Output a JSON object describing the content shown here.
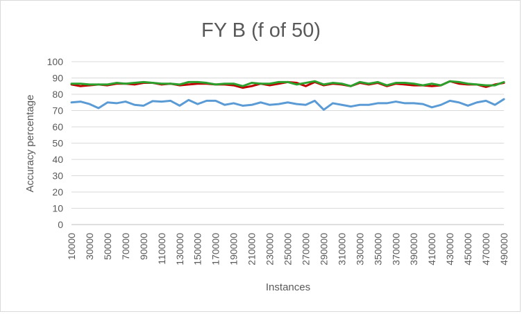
{
  "chart_data": {
    "type": "line",
    "title": "FY B (f of 50)",
    "xlabel": "Instances",
    "ylabel": "Accuracy percentage",
    "ylim": [
      0,
      100
    ],
    "y_ticks": [
      0,
      10,
      20,
      30,
      40,
      50,
      60,
      70,
      80,
      90,
      100
    ],
    "x_tick_labels": [
      "10000",
      "30000",
      "50000",
      "70000",
      "90000",
      "110000",
      "130000",
      "150000",
      "170000",
      "190000",
      "210000",
      "230000",
      "250000",
      "270000",
      "290000",
      "310000",
      "330000",
      "350000",
      "370000",
      "390000",
      "410000",
      "430000",
      "450000",
      "470000",
      "490000"
    ],
    "x": [
      10000,
      20000,
      30000,
      40000,
      50000,
      60000,
      70000,
      80000,
      90000,
      100000,
      110000,
      120000,
      130000,
      140000,
      150000,
      160000,
      170000,
      180000,
      190000,
      200000,
      210000,
      220000,
      230000,
      240000,
      250000,
      260000,
      270000,
      280000,
      290000,
      300000,
      310000,
      320000,
      330000,
      340000,
      350000,
      360000,
      370000,
      380000,
      390000,
      400000,
      410000,
      420000,
      430000,
      440000,
      450000,
      460000,
      470000,
      480000,
      490000
    ],
    "grid": true,
    "legend": "none",
    "series": [
      {
        "name": "blue",
        "color": "#5b9bd5",
        "values": [
          75,
          75.5,
          74,
          71.5,
          75,
          74.5,
          75.5,
          73.5,
          73,
          75.8,
          75.5,
          76,
          73,
          76.5,
          74,
          76,
          76,
          73.5,
          74.5,
          73,
          73.5,
          75,
          73.5,
          74,
          75,
          74,
          73.5,
          76,
          70.5,
          74.5,
          73.5,
          72.5,
          73.5,
          73.5,
          74.5,
          74.5,
          75.5,
          74.5,
          74.5,
          74,
          72,
          73.5,
          76,
          75,
          73,
          75,
          76,
          73.5,
          77
        ]
      },
      {
        "name": "red",
        "color": "#c00000",
        "values": [
          86,
          85,
          85.5,
          86,
          85.5,
          86.5,
          86.5,
          86,
          87,
          87,
          86,
          86.5,
          85.5,
          86,
          86.5,
          86.5,
          86,
          86,
          85.5,
          84,
          85,
          86.5,
          85.5,
          86.5,
          87.5,
          87,
          85,
          87.5,
          85.5,
          86.5,
          86,
          85,
          87,
          86,
          87,
          85,
          86.5,
          86,
          85.5,
          85.5,
          85,
          85.5,
          88,
          86.5,
          86,
          86,
          84.5,
          86,
          87
        ]
      },
      {
        "name": "green",
        "color": "#2ca02c",
        "values": [
          86.5,
          86.5,
          86,
          86,
          86,
          87,
          86.5,
          87,
          87.5,
          87,
          86.5,
          86.5,
          86,
          87.5,
          87.5,
          87,
          86,
          86.5,
          86.5,
          85,
          87,
          86.5,
          86.5,
          87.5,
          87.5,
          86,
          87,
          88,
          86,
          87,
          86.5,
          85,
          87.5,
          86.5,
          87.5,
          85.5,
          87,
          87,
          86.5,
          85.5,
          86.5,
          85.5,
          88,
          87.5,
          86.5,
          86,
          85.5,
          85.5,
          87.5
        ]
      }
    ]
  }
}
